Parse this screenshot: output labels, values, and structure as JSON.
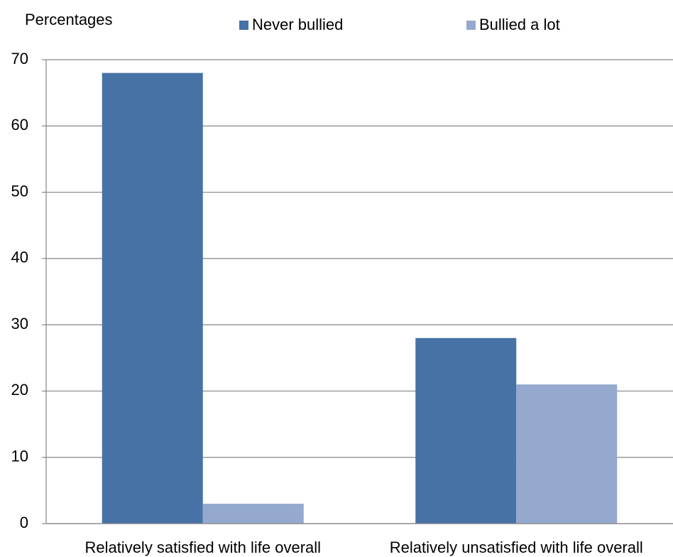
{
  "chart_data": {
    "type": "bar",
    "y_axis_label": "Percentages",
    "categories": [
      "Relatively satisfied with life overall",
      "Relatively unsatisfied with life overall"
    ],
    "series": [
      {
        "name": "Never bullied",
        "color": "#4672a6",
        "values": [
          68,
          28
        ]
      },
      {
        "name": "Bullied a lot",
        "color": "#95a9cf",
        "values": [
          3,
          21
        ]
      }
    ],
    "ylim": [
      0,
      70
    ],
    "yticks": [
      0,
      10,
      20,
      30,
      40,
      50,
      60,
      70
    ],
    "grid": true,
    "legend": "top"
  }
}
